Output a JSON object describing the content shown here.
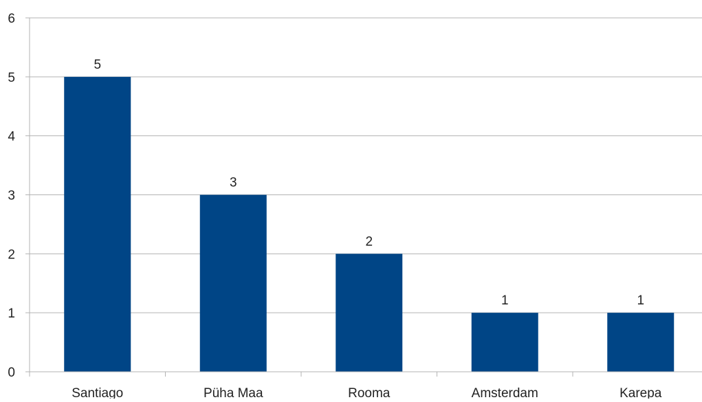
{
  "chart_data": {
    "type": "bar",
    "categories": [
      "Santiago",
      "Püha Maa",
      "Rooma",
      "Amsterdam",
      "Karepa"
    ],
    "values": [
      5,
      3,
      2,
      1,
      1
    ],
    "data_labels": [
      "5",
      "3",
      "2",
      "1",
      "1"
    ],
    "y_ticks": [
      "0",
      "1",
      "2",
      "3",
      "4",
      "5",
      "6"
    ],
    "ylim": [
      0,
      6
    ],
    "grid": true,
    "legend": "none",
    "title": "",
    "xlabel": "",
    "ylabel": "",
    "colors": {
      "bar": "#004586",
      "grid": "#b3b3b3",
      "axis": "#b3b3b3",
      "text": "#222222"
    }
  }
}
